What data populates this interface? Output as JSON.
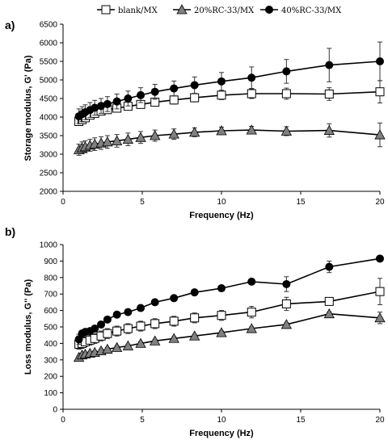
{
  "legend": {
    "entries": [
      {
        "label": "blank/MX",
        "marker": "square-open"
      },
      {
        "label": "20%RC-33/MX",
        "marker": "triangle-gray"
      },
      {
        "label": "40%RC-33/MX",
        "marker": "circle-black"
      }
    ]
  },
  "colors": {
    "line": "#000000",
    "triangle_fill": "#808080",
    "square_fill": "#ffffff",
    "circle_fill": "#000000",
    "error_bar": "#333333"
  },
  "chart_data": [
    {
      "type": "line",
      "panel_label": "a)",
      "xlabel": "Frequency (Hz)",
      "ylabel": "Storage modulus, G' (Pa)",
      "xlim": [
        0,
        20
      ],
      "ylim": [
        2000,
        6500
      ],
      "xticks": [
        0,
        5,
        10,
        15,
        20
      ],
      "yticks": [
        2000,
        2500,
        3000,
        3500,
        4000,
        4500,
        5000,
        5500,
        6000,
        6500
      ],
      "grid": false,
      "x": [
        1,
        1.2,
        1.4,
        1.7,
        2,
        2.4,
        2.8,
        3.4,
        4.1,
        4.9,
        5.8,
        7,
        8.3,
        10,
        11.9,
        14.1,
        16.8,
        20
      ],
      "series": [
        {
          "name": "blank/MX",
          "marker": "square-open",
          "values": [
            3880,
            3930,
            3980,
            4050,
            4100,
            4160,
            4200,
            4240,
            4290,
            4340,
            4400,
            4460,
            4520,
            4590,
            4630,
            4630,
            4620,
            4680
          ],
          "errors": [
            80,
            80,
            90,
            90,
            100,
            100,
            100,
            100,
            100,
            100,
            100,
            110,
            110,
            120,
            130,
            150,
            170,
            300
          ]
        },
        {
          "name": "20%RC-33/MX",
          "marker": "triangle-gray",
          "values": [
            3120,
            3170,
            3200,
            3240,
            3270,
            3300,
            3330,
            3360,
            3400,
            3450,
            3500,
            3540,
            3590,
            3630,
            3650,
            3620,
            3640,
            3520
          ],
          "errors": [
            150,
            160,
            160,
            160,
            170,
            170,
            170,
            170,
            170,
            160,
            150,
            140,
            120,
            100,
            100,
            120,
            180,
            320
          ]
        },
        {
          "name": "40%RC-33/MX",
          "marker": "circle-black",
          "values": [
            4020,
            4080,
            4130,
            4190,
            4250,
            4300,
            4350,
            4420,
            4500,
            4590,
            4680,
            4770,
            4860,
            4960,
            5060,
            5230,
            5400,
            5500
          ],
          "errors": [
            200,
            200,
            200,
            200,
            200,
            200,
            200,
            200,
            200,
            200,
            200,
            200,
            220,
            240,
            290,
            320,
            450,
            520
          ]
        }
      ]
    },
    {
      "type": "line",
      "panel_label": "b)",
      "xlabel": "Frequency (Hz)",
      "ylabel": "Loss modulus, G'' (Pa)",
      "xlim": [
        0,
        20
      ],
      "ylim": [
        0,
        1000
      ],
      "xticks": [
        0,
        5,
        10,
        15,
        20
      ],
      "yticks": [
        0,
        100,
        200,
        300,
        400,
        500,
        600,
        700,
        800,
        900,
        1000
      ],
      "grid": false,
      "x": [
        1,
        1.2,
        1.4,
        1.7,
        2,
        2.4,
        2.8,
        3.4,
        4.1,
        4.9,
        5.8,
        7,
        8.3,
        10,
        11.9,
        14.1,
        16.8,
        20
      ],
      "series": [
        {
          "name": "blank/MX",
          "marker": "square-open",
          "values": [
            395,
            400,
            410,
            420,
            430,
            445,
            460,
            475,
            490,
            505,
            520,
            535,
            555,
            570,
            590,
            640,
            655,
            715
          ],
          "errors": [
            30,
            30,
            30,
            30,
            30,
            30,
            30,
            30,
            30,
            30,
            30,
            30,
            30,
            30,
            35,
            40,
            20,
            80
          ]
        },
        {
          "name": "20%RC-33/MX",
          "marker": "triangle-gray",
          "values": [
            315,
            330,
            335,
            340,
            345,
            355,
            365,
            375,
            385,
            400,
            415,
            430,
            445,
            465,
            490,
            515,
            580,
            555
          ],
          "errors": [
            10,
            10,
            10,
            10,
            10,
            10,
            10,
            10,
            10,
            10,
            10,
            10,
            10,
            10,
            10,
            10,
            10,
            35
          ]
        },
        {
          "name": "40%RC-33/MX",
          "marker": "circle-black",
          "values": [
            425,
            460,
            470,
            475,
            490,
            515,
            545,
            575,
            590,
            615,
            650,
            675,
            710,
            735,
            775,
            760,
            865,
            915
          ],
          "errors": [
            30,
            20,
            15,
            10,
            10,
            10,
            10,
            10,
            10,
            10,
            10,
            10,
            10,
            10,
            10,
            45,
            35,
            10
          ]
        }
      ]
    }
  ]
}
